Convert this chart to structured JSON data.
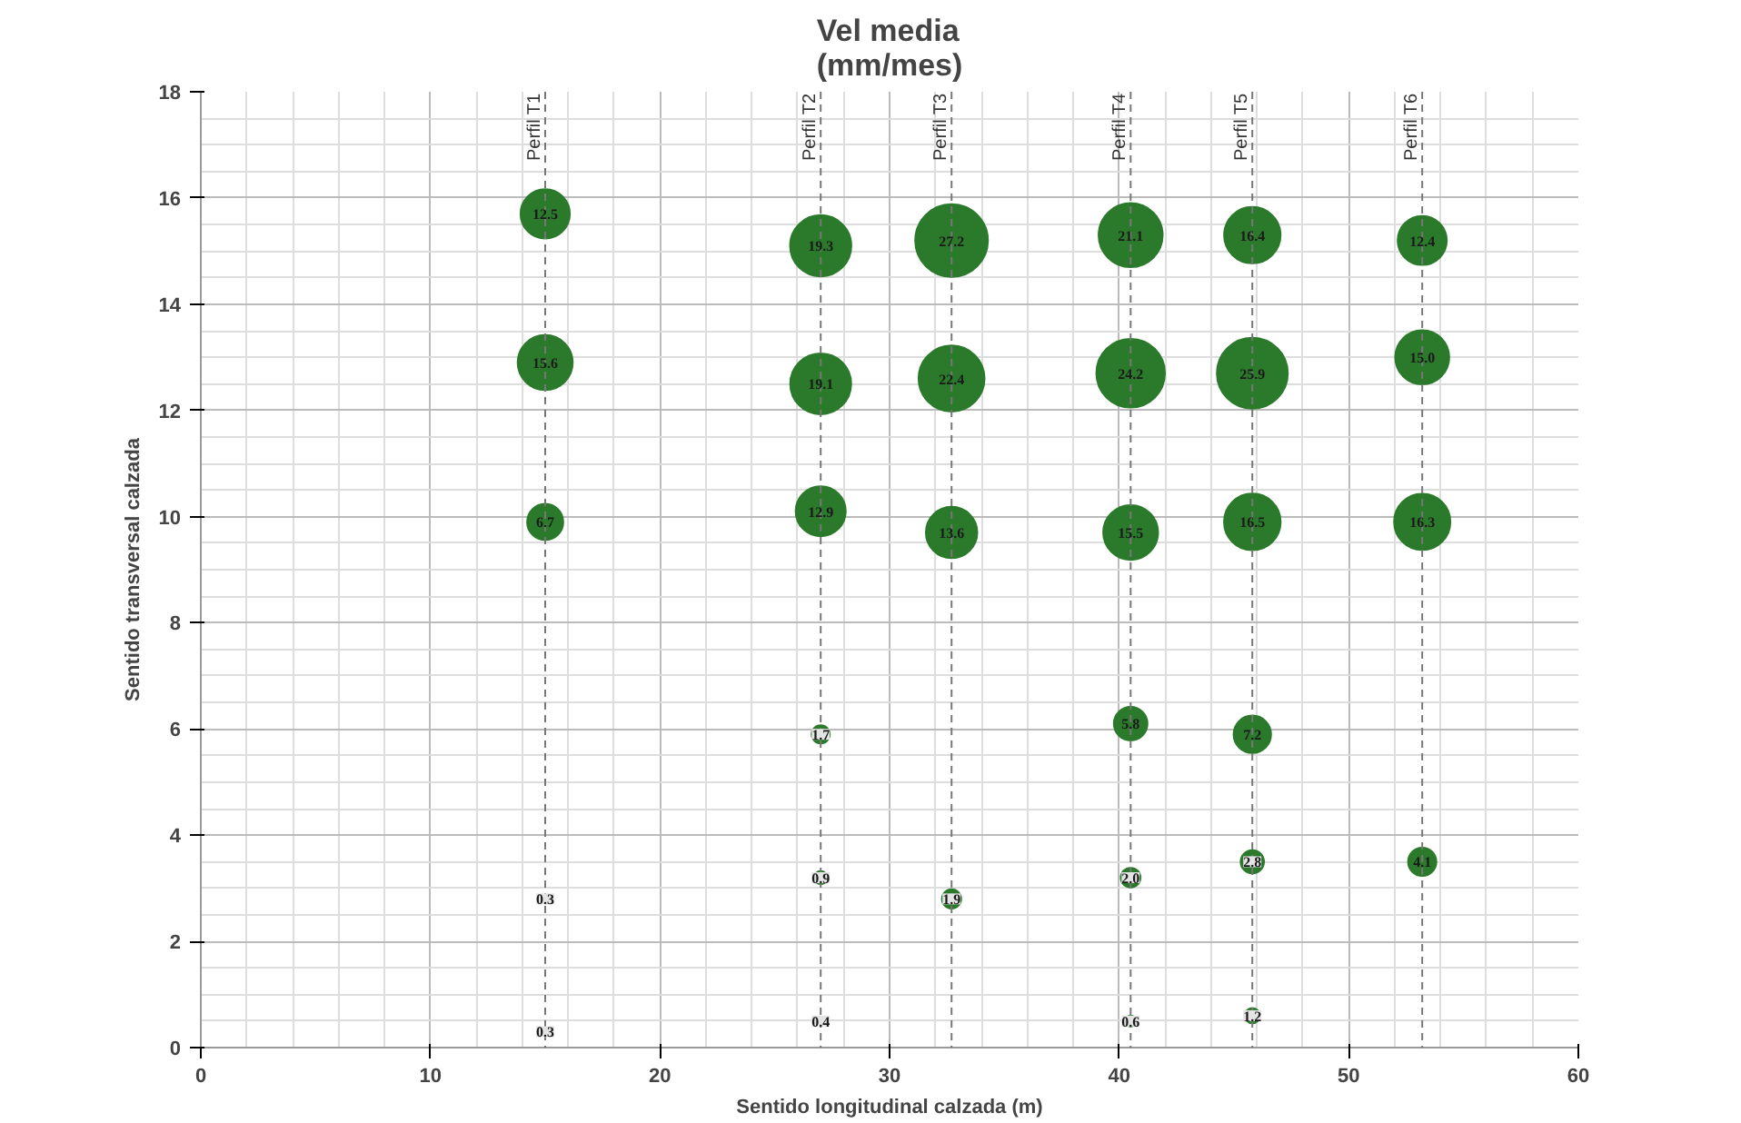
{
  "chart_data": {
    "type": "bubble",
    "title": "Vel media\n(mm/mes)",
    "xlabel": "Sentido longitudinal calzada (m)",
    "ylabel": "Sentido transversal calzada",
    "series": [
      {
        "color": "#2b7a2b",
        "x": [
          15,
          15,
          15,
          15,
          15,
          27,
          27,
          27,
          27,
          27,
          27,
          32.7,
          32.7,
          32.7,
          32.7,
          40.5,
          40.5,
          40.5,
          40.5,
          40.5,
          40.5,
          45.8,
          45.8,
          45.8,
          45.8,
          45.8,
          45.8,
          53.2,
          53.2,
          53.2,
          53.2
        ],
        "values": [
          15.7,
          12.9,
          9.9,
          2.8,
          0.3,
          15.1,
          12.5,
          10.1,
          5.9,
          3.2,
          0.5,
          15.2,
          12.6,
          9.7,
          2.8,
          15.3,
          12.7,
          9.7,
          6.1,
          3.2,
          0.5,
          15.3,
          12.7,
          9.9,
          5.9,
          3.5,
          0.6,
          15.2,
          13.0,
          9.9,
          3.5
        ],
        "sizes": [
          12.5,
          15.6,
          6.7,
          0.3,
          0.3,
          19.3,
          19.1,
          12.9,
          1.7,
          0.9,
          0.4,
          27.2,
          22.4,
          13.6,
          1.9,
          21.1,
          24.2,
          15.5,
          5.8,
          2.0,
          0.6,
          16.4,
          25.9,
          16.5,
          7.2,
          2.8,
          1.2,
          12.4,
          15.0,
          16.3,
          4.1
        ],
        "value_labels": [
          "12.5",
          "15.6",
          "6.7",
          "0.3",
          "0.3",
          "19.3",
          "19.1",
          "12.9",
          "1.7",
          "0.9",
          "0.4",
          "27.2",
          "22.4",
          "13.6",
          "1.9",
          "21.1",
          "24.2",
          "15.5",
          "5.8",
          "2.0",
          "0.6",
          "16.4",
          "25.9",
          "16.5",
          "7.2",
          "2.8",
          "1.2",
          "12.4",
          "15.0",
          "16.3",
          "4.1"
        ]
      }
    ],
    "ref_lines": [
      {
        "axis": "x",
        "value": 15,
        "label": "Perfil T1",
        "line_style": "dashed"
      },
      {
        "axis": "x",
        "value": 27,
        "label": "Perfil T2",
        "line_style": "dashed"
      },
      {
        "axis": "x",
        "value": 32.7,
        "label": "Perfil T3",
        "line_style": "dashed"
      },
      {
        "axis": "x",
        "value": 40.5,
        "label": "Perfil T4",
        "line_style": "dashed"
      },
      {
        "axis": "x",
        "value": 45.8,
        "label": "Perfil T5",
        "line_style": "dashed"
      },
      {
        "axis": "x",
        "value": 53.2,
        "label": "Perfil T6",
        "line_style": "dashed"
      }
    ],
    "xlim": [
      0,
      60
    ],
    "ylim": [
      0,
      18
    ],
    "xticks": [
      0,
      10,
      20,
      30,
      40,
      50,
      60
    ],
    "yticks": [
      0,
      2,
      4,
      6,
      8,
      10,
      12,
      14,
      16,
      18
    ],
    "grid": true
  }
}
